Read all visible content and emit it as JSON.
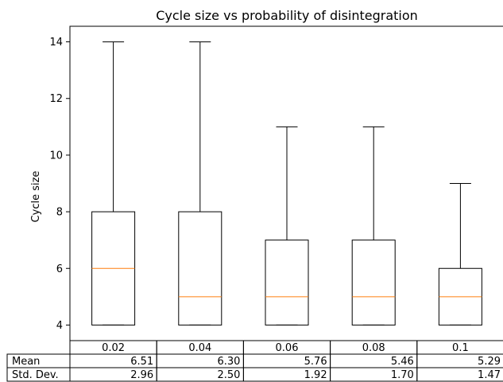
{
  "chart_data": {
    "type": "box",
    "title": "Cycle size vs probability of disintegration",
    "xlabel": "",
    "ylabel": "Cycle size",
    "ylim": [
      3.45,
      14.55
    ],
    "yticks": [
      4,
      6,
      8,
      10,
      12,
      14
    ],
    "grid": false,
    "boxes": [
      {
        "label": "0.02",
        "whisker_low": 4,
        "q1": 4,
        "median": 6,
        "q3": 8,
        "whisker_high": 14
      },
      {
        "label": "0.04",
        "whisker_low": 4,
        "q1": 4,
        "median": 5,
        "q3": 8,
        "whisker_high": 14
      },
      {
        "label": "0.06",
        "whisker_low": 4,
        "q1": 4,
        "median": 5,
        "q3": 7,
        "whisker_high": 11
      },
      {
        "label": "0.08",
        "whisker_low": 4,
        "q1": 4,
        "median": 5,
        "q3": 7,
        "whisker_high": 11
      },
      {
        "label": "0.1",
        "whisker_low": 4,
        "q1": 4,
        "median": 5,
        "q3": 6,
        "whisker_high": 9
      }
    ],
    "table": {
      "columns": [
        "0.02",
        "0.04",
        "0.06",
        "0.08",
        "0.1"
      ],
      "rows": [
        {
          "label": "Mean",
          "values": [
            "6.51",
            "6.30",
            "5.76",
            "5.46",
            "5.29"
          ]
        },
        {
          "label": "Std. Dev.",
          "values": [
            "2.96",
            "2.50",
            "1.92",
            "1.70",
            "1.47"
          ]
        }
      ]
    },
    "colors": {
      "box": "#000000",
      "median": "#ff7f0e"
    }
  }
}
